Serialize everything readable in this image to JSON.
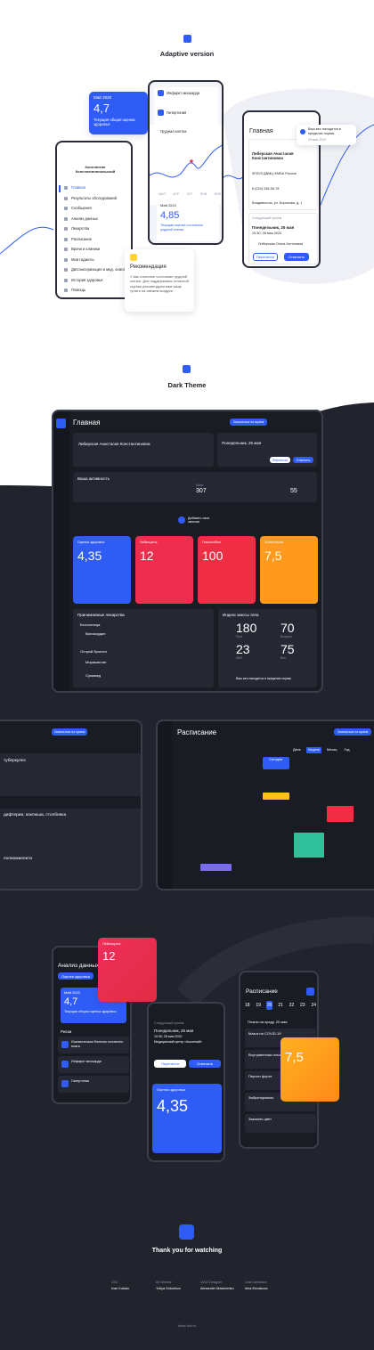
{
  "adaptive": {
    "title": "Adaptive version",
    "score_card": {
      "date": "Май 2020",
      "value": "4,7",
      "label": "Текущая общая оценка здоровья"
    },
    "menu": {
      "user": "Константин Константинопольский",
      "items": [
        "Главная",
        "Результаты обследований",
        "Сообщения",
        "Анализ данных",
        "Лекарства",
        "Расписание",
        "Врачи и клиники",
        "Мои гаджеты",
        "Диспансеризация и мед. осмотры",
        "История здоровья",
        "Помощь"
      ]
    },
    "risks": [
      "Инфаркт миокарда",
      "Гипертония"
    ],
    "chart_card": {
      "filter": "Грудная клетка",
      "months": [
        "МАЯ",
        "АПР",
        "ОКТ",
        "ЯНВ",
        "ФЕВ"
      ],
      "date": "Май 2020",
      "value": "4,85",
      "label": "Текущая оценка состояния грудной клетки"
    },
    "recommendation": {
      "title": "Рекомендация",
      "text": "У вас отличное состояние грудной клетки. Для поддержания отличной оценки рекомендуем вам чаще гулять на свежем воздухе."
    },
    "home": {
      "title": "Главная",
      "doctor": "Либерская Анастасия Константиновна",
      "org": "ФГБУЗ ДВМЦ ФМБА России",
      "phone": "8 (224) 245-56-78",
      "address": "Владивосток, ул. Борисова, д. 1",
      "next": "Следующий прием",
      "day": "Понедельник, 25 мая",
      "time": "10:30, 28 мая 2020",
      "patient": "Либерская Ольга Антоновна",
      "buttons": [
        "Перенести",
        "Отменить"
      ]
    },
    "notification": {
      "text": "Ваш вес находится в пределах нормы",
      "date": "25 мая 2020"
    }
  },
  "dark": {
    "title": "Dark Theme",
    "header": {
      "title": "Главная",
      "button": "Записаться на прием"
    },
    "doctor": "Либерская Анастасия Константиновна",
    "appointment": {
      "day": "Понедельник, 25 мая",
      "buttons": [
        "Перенести",
        "Отменить"
      ]
    },
    "activity": {
      "title": "Ваша активность",
      "steps_label": "Шаги",
      "steps": "307",
      "pulse": "55"
    },
    "add": "Добавить свои занятия",
    "tiles": [
      {
        "label": "Оценка здоровья",
        "value": "4,35"
      },
      {
        "label": "Лейкоциты",
        "value": "12"
      },
      {
        "label": "Гемоглобин",
        "value": "100"
      },
      {
        "label": "Холестерин",
        "value": "7,5"
      }
    ],
    "medicines": {
      "title": "Принимаемые лекарства",
      "groups": [
        "Бессонница",
        "Острый бронхит"
      ],
      "items": [
        "Валокордин",
        "Мирамистин",
        "Сумамед"
      ]
    },
    "bmi": {
      "title": "Индекс массы тела",
      "values": [
        "180",
        "70",
        "23",
        "75"
      ],
      "labels": [
        "Рост",
        "Возраст",
        "ИМТ",
        "Вес"
      ],
      "note": "Ваш вес находится в пределах нормы"
    }
  },
  "screens": {
    "vaccines": [
      "туберкулез",
      "дифтерии, коклюша, столбняка",
      "полиомиелита"
    ],
    "schedule": {
      "title": "Расписание",
      "tabs": [
        "День",
        "Неделя",
        "Месяц",
        "Год"
      ],
      "today": "Сегодня"
    }
  },
  "mobile": {
    "analysis": {
      "title": "Анализ данных",
      "tab": "Оценка здоровья",
      "date": "Май 2020",
      "value": "4,7",
      "label": "Текущая общая оценка здоровья",
      "risks_title": "Риски",
      "risks": [
        "Ишемическая болезнь головного мозга",
        "Инфаркт миокарда",
        "Гипертония"
      ]
    },
    "red": {
      "label": "Лейкоциты",
      "value": "12"
    },
    "phone": {
      "next": "Следующий прием",
      "day": "Понедельник, 25 мая",
      "time": "10:30, 28 мая 2020",
      "place": "Медицинский центр «Асклепий»",
      "buttons": [
        "Перенести",
        "Отменить"
      ],
      "score_label": "Оценка здоровья",
      "score": "4,35"
    },
    "schedule": {
      "title": "Расписание",
      "days": [
        "18",
        "19",
        "20",
        "21",
        "22",
        "23",
        "24"
      ],
      "plans": "Планы на среду, 20 мая",
      "items": [
        "Мазок на COVID-19",
        "Внутривенная инъекция",
        "Персен форте",
        "Забронировать",
        "Заказать цвет"
      ]
    },
    "orange": {
      "value": "7,5"
    }
  },
  "footer": {
    "title": "Thank you for watching",
    "credits": [
      {
        "role": "CEO",
        "name": "Ivan Kubain"
      },
      {
        "role": "Art Director",
        "name": "Yuliya Solovieva"
      },
      {
        "role": "UI/UX Designer",
        "name": "Alexander Maximenko"
      },
      {
        "role": "Case Animation",
        "name": "Irina Ermakova"
      }
    ],
    "site": "dinar-dnl.ru"
  }
}
